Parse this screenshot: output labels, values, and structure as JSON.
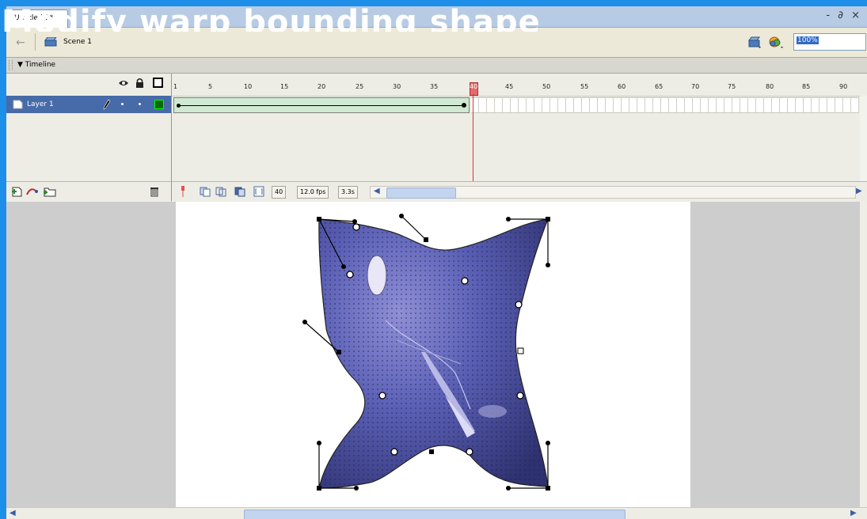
{
  "overlay": {
    "title": "Modify warp bounding shape"
  },
  "document": {
    "tab_label": "Untitled-1*",
    "window_controls": "- ∂ ×"
  },
  "scene_bar": {
    "back_icon": "back-arrow-icon",
    "scene_label": "Scene 1",
    "zoom_value": "100%"
  },
  "timeline": {
    "panel_title": "Timeline",
    "ruler_ticks": [
      "1",
      "5",
      "10",
      "15",
      "20",
      "25",
      "30",
      "35",
      "40",
      "45",
      "50",
      "55",
      "60",
      "65",
      "70",
      "75",
      "80",
      "85",
      "90"
    ],
    "layer": {
      "name": "Layer 1"
    },
    "status": {
      "current_frame": "40",
      "frame_rate": "12.0 fps",
      "elapsed_time": "3.3s"
    }
  },
  "colors": {
    "background": "#1e8fe8",
    "layer_selected": "#476aa8",
    "tween": "#cfe9d2",
    "playhead": "#e03030",
    "shape_fill": "#4d56a8"
  }
}
